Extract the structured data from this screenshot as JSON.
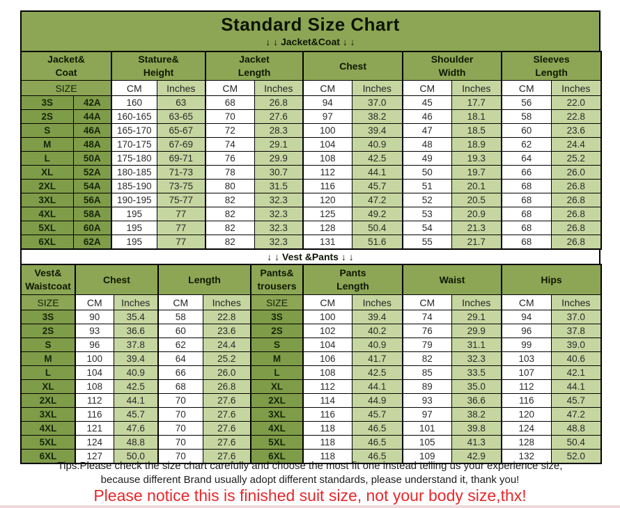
{
  "page": {
    "title": "Standard Size Chart",
    "tips_line1": "Tips:Please check the size chart carefully and choose the most fit one instead telling us your experience size,",
    "tips_line2": "because different Brand usually adopt different standards, please understand it, thank you!",
    "notice": "Please notice this is finished suit size, not your body size,thx!"
  },
  "colors": {
    "olive_green": "#8CA655",
    "size_cell_green": "#7F9C48",
    "light_green": "#C6D6A0",
    "notice_red": "#E8272B"
  },
  "jacket_table": {
    "section_label": "↓ ↓  Jacket&Coat ↓ ↓",
    "group_headers": [
      "Jacket&\nCoat",
      "Stature&\nHeight",
      "Jacket\nLength",
      "Chest",
      "Shoulder\nWidth",
      "Sleeves\nLength"
    ],
    "size_header": "SIZE",
    "cm_header": "CM",
    "inches_header": "Inches",
    "rows": [
      [
        "3S",
        "42A",
        "160",
        "63",
        "68",
        "26.8",
        "94",
        "37.0",
        "45",
        "17.7",
        "56",
        "22.0"
      ],
      [
        "2S",
        "44A",
        "160-165",
        "63-65",
        "70",
        "27.6",
        "97",
        "38.2",
        "46",
        "18.1",
        "58",
        "22.8"
      ],
      [
        "S",
        "46A",
        "165-170",
        "65-67",
        "72",
        "28.3",
        "100",
        "39.4",
        "47",
        "18.5",
        "60",
        "23.6"
      ],
      [
        "M",
        "48A",
        "170-175",
        "67-69",
        "74",
        "29.1",
        "104",
        "40.9",
        "48",
        "18.9",
        "62",
        "24.4"
      ],
      [
        "L",
        "50A",
        "175-180",
        "69-71",
        "76",
        "29.9",
        "108",
        "42.5",
        "49",
        "19.3",
        "64",
        "25.2"
      ],
      [
        "XL",
        "52A",
        "180-185",
        "71-73",
        "78",
        "30.7",
        "112",
        "44.1",
        "50",
        "19.7",
        "66",
        "26.0"
      ],
      [
        "2XL",
        "54A",
        "185-190",
        "73-75",
        "80",
        "31.5",
        "116",
        "45.7",
        "51",
        "20.1",
        "68",
        "26.8"
      ],
      [
        "3XL",
        "56A",
        "190-195",
        "75-77",
        "82",
        "32.3",
        "120",
        "47.2",
        "52",
        "20.5",
        "68",
        "26.8"
      ],
      [
        "4XL",
        "58A",
        "195",
        "77",
        "82",
        "32.3",
        "125",
        "49.2",
        "53",
        "20.9",
        "68",
        "26.8"
      ],
      [
        "5XL",
        "60A",
        "195",
        "77",
        "82",
        "32.3",
        "128",
        "50.4",
        "54",
        "21.3",
        "68",
        "26.8"
      ],
      [
        "6XL",
        "62A",
        "195",
        "77",
        "82",
        "32.3",
        "131",
        "51.6",
        "55",
        "21.7",
        "68",
        "26.8"
      ]
    ]
  },
  "vest_pants_table": {
    "section_label": "↓ ↓  Vest &Pants ↓ ↓",
    "group_headers": [
      "Vest&\nWaistcoat",
      "Chest",
      "Length",
      "Pants&\ntrousers",
      "Pants\nLength",
      "Waist",
      "Hips"
    ],
    "size_header": "SIZE",
    "cm_header": "CM",
    "inches_header": "Inches",
    "rows": [
      [
        "3S",
        "90",
        "35.4",
        "58",
        "22.8",
        "3S",
        "100",
        "39.4",
        "74",
        "29.1",
        "94",
        "37.0"
      ],
      [
        "2S",
        "93",
        "36.6",
        "60",
        "23.6",
        "2S",
        "102",
        "40.2",
        "76",
        "29.9",
        "96",
        "37.8"
      ],
      [
        "S",
        "96",
        "37.8",
        "62",
        "24.4",
        "S",
        "104",
        "40.9",
        "79",
        "31.1",
        "99",
        "39.0"
      ],
      [
        "M",
        "100",
        "39.4",
        "64",
        "25.2",
        "M",
        "106",
        "41.7",
        "82",
        "32.3",
        "103",
        "40.6"
      ],
      [
        "L",
        "104",
        "40.9",
        "66",
        "26.0",
        "L",
        "108",
        "42.5",
        "85",
        "33.5",
        "107",
        "42.1"
      ],
      [
        "XL",
        "108",
        "42.5",
        "68",
        "26.8",
        "XL",
        "112",
        "44.1",
        "89",
        "35.0",
        "112",
        "44.1"
      ],
      [
        "2XL",
        "112",
        "44.1",
        "70",
        "27.6",
        "2XL",
        "114",
        "44.9",
        "93",
        "36.6",
        "116",
        "45.7"
      ],
      [
        "3XL",
        "116",
        "45.7",
        "70",
        "27.6",
        "3XL",
        "116",
        "45.7",
        "97",
        "38.2",
        "120",
        "47.2"
      ],
      [
        "4XL",
        "121",
        "47.6",
        "70",
        "27.6",
        "4XL",
        "118",
        "46.5",
        "101",
        "39.8",
        "124",
        "48.8"
      ],
      [
        "5XL",
        "124",
        "48.8",
        "70",
        "27.6",
        "5XL",
        "118",
        "46.5",
        "105",
        "41.3",
        "128",
        "50.4"
      ],
      [
        "6XL",
        "127",
        "50.0",
        "70",
        "27.6",
        "6XL",
        "118",
        "46.5",
        "109",
        "42.9",
        "132",
        "52.0"
      ]
    ]
  }
}
